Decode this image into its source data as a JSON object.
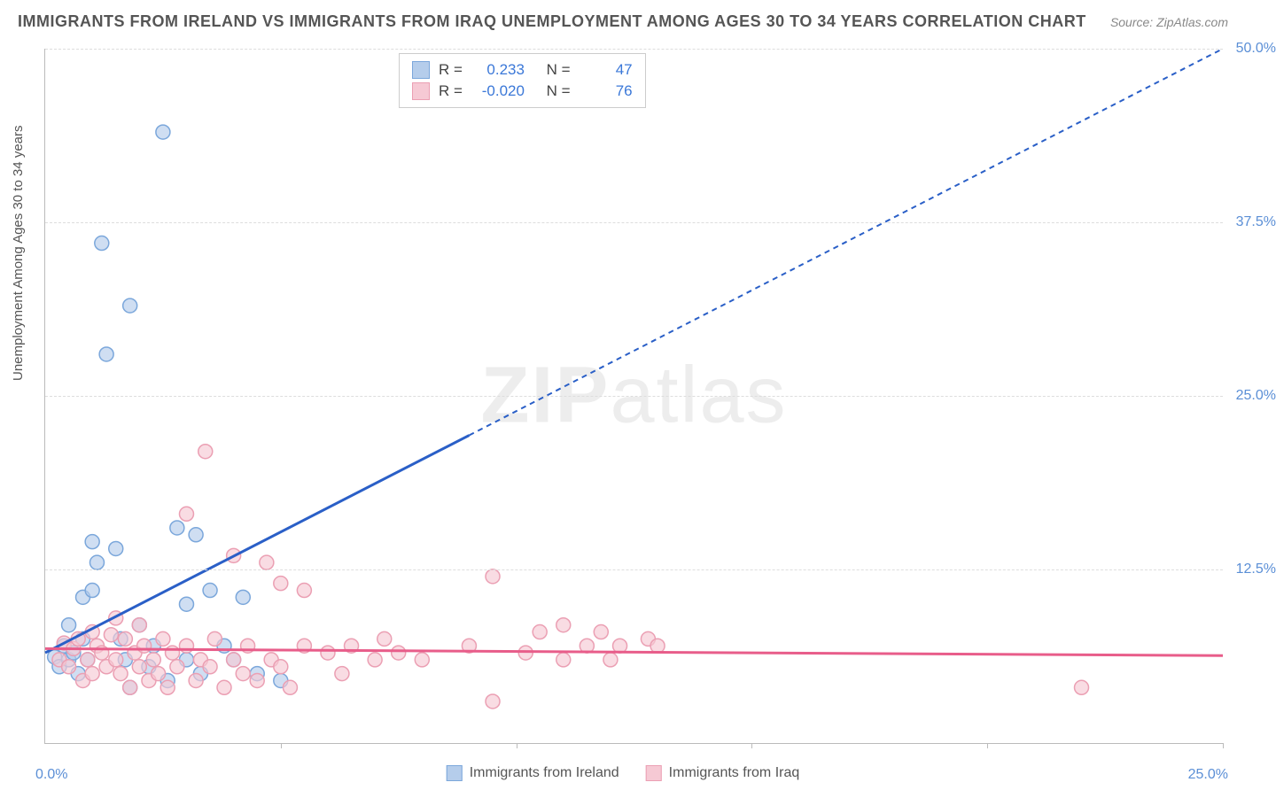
{
  "title": "IMMIGRANTS FROM IRELAND VS IMMIGRANTS FROM IRAQ UNEMPLOYMENT AMONG AGES 30 TO 34 YEARS CORRELATION CHART",
  "source": "Source: ZipAtlas.com",
  "y_axis_label": "Unemployment Among Ages 30 to 34 years",
  "watermark_main": "ZIP",
  "watermark_sub": "atlas",
  "chart": {
    "type": "scatter",
    "xlim": [
      0,
      25
    ],
    "ylim": [
      0,
      50
    ],
    "y_ticks": [
      12.5,
      25.0,
      37.5,
      50.0
    ],
    "y_tick_labels": [
      "12.5%",
      "25.0%",
      "37.5%",
      "50.0%"
    ],
    "x_ticks": [
      5,
      10,
      15,
      20,
      25
    ],
    "x_origin_label": "0.0%",
    "x_max_label": "25.0%",
    "background_color": "#ffffff",
    "grid_color": "#dddddd",
    "axis_color": "#bbbbbb",
    "marker_radius": 8,
    "marker_stroke_width": 1.5,
    "trend_line_width": 3,
    "trend_dash": "6,5"
  },
  "series": [
    {
      "name": "Immigrants from Ireland",
      "fill_color": "#b5cdeb",
      "stroke_color": "#7ba7db",
      "line_color": "#2a5fc7",
      "R": "0.233",
      "N": "47",
      "trend": {
        "x1": 0,
        "y1": 6.5,
        "x2": 25,
        "y2": 50,
        "solid_until_x": 9
      },
      "points": [
        [
          0.2,
          6.2
        ],
        [
          0.3,
          5.5
        ],
        [
          0.4,
          7.0
        ],
        [
          0.5,
          6.0
        ],
        [
          0.5,
          8.5
        ],
        [
          0.6,
          6.5
        ],
        [
          0.7,
          5.0
        ],
        [
          0.8,
          7.5
        ],
        [
          0.8,
          10.5
        ],
        [
          0.9,
          6.0
        ],
        [
          1.0,
          11.0
        ],
        [
          1.0,
          14.5
        ],
        [
          1.1,
          13.0
        ],
        [
          1.2,
          36.0
        ],
        [
          1.3,
          28.0
        ],
        [
          1.5,
          14.0
        ],
        [
          1.6,
          7.5
        ],
        [
          1.7,
          6.0
        ],
        [
          1.8,
          4.0
        ],
        [
          1.8,
          31.5
        ],
        [
          2.0,
          8.5
        ],
        [
          2.2,
          5.5
        ],
        [
          2.3,
          7.0
        ],
        [
          2.5,
          44.0
        ],
        [
          2.6,
          4.5
        ],
        [
          2.8,
          15.5
        ],
        [
          3.0,
          6.0
        ],
        [
          3.0,
          10.0
        ],
        [
          3.2,
          15.0
        ],
        [
          3.3,
          5.0
        ],
        [
          3.5,
          11.0
        ],
        [
          3.8,
          7.0
        ],
        [
          4.0,
          6.0
        ],
        [
          4.2,
          10.5
        ],
        [
          4.5,
          5.0
        ],
        [
          5.0,
          4.5
        ]
      ]
    },
    {
      "name": "Immigrants from Iraq",
      "fill_color": "#f6c9d4",
      "stroke_color": "#eb9fb3",
      "line_color": "#e85d8a",
      "R": "-0.020",
      "N": "76",
      "trend": {
        "x1": 0,
        "y1": 6.8,
        "x2": 25,
        "y2": 6.3,
        "solid_until_x": 25
      },
      "points": [
        [
          0.3,
          6.0
        ],
        [
          0.4,
          7.2
        ],
        [
          0.5,
          5.5
        ],
        [
          0.6,
          6.8
        ],
        [
          0.7,
          7.5
        ],
        [
          0.8,
          4.5
        ],
        [
          0.9,
          6.0
        ],
        [
          1.0,
          5.0
        ],
        [
          1.0,
          8.0
        ],
        [
          1.1,
          7.0
        ],
        [
          1.2,
          6.5
        ],
        [
          1.3,
          5.5
        ],
        [
          1.4,
          7.8
        ],
        [
          1.5,
          6.0
        ],
        [
          1.5,
          9.0
        ],
        [
          1.6,
          5.0
        ],
        [
          1.7,
          7.5
        ],
        [
          1.8,
          4.0
        ],
        [
          1.9,
          6.5
        ],
        [
          2.0,
          5.5
        ],
        [
          2.0,
          8.5
        ],
        [
          2.1,
          7.0
        ],
        [
          2.2,
          4.5
        ],
        [
          2.3,
          6.0
        ],
        [
          2.4,
          5.0
        ],
        [
          2.5,
          7.5
        ],
        [
          2.6,
          4.0
        ],
        [
          2.7,
          6.5
        ],
        [
          2.8,
          5.5
        ],
        [
          3.0,
          7.0
        ],
        [
          3.0,
          16.5
        ],
        [
          3.2,
          4.5
        ],
        [
          3.3,
          6.0
        ],
        [
          3.4,
          21.0
        ],
        [
          3.5,
          5.5
        ],
        [
          3.6,
          7.5
        ],
        [
          3.8,
          4.0
        ],
        [
          4.0,
          13.5
        ],
        [
          4.0,
          6.0
        ],
        [
          4.2,
          5.0
        ],
        [
          4.3,
          7.0
        ],
        [
          4.5,
          4.5
        ],
        [
          4.7,
          13.0
        ],
        [
          4.8,
          6.0
        ],
        [
          5.0,
          5.5
        ],
        [
          5.0,
          11.5
        ],
        [
          5.2,
          4.0
        ],
        [
          5.5,
          7.0
        ],
        [
          5.5,
          11.0
        ],
        [
          6.0,
          6.5
        ],
        [
          6.3,
          5.0
        ],
        [
          6.5,
          7.0
        ],
        [
          7.0,
          6.0
        ],
        [
          7.2,
          7.5
        ],
        [
          7.5,
          6.5
        ],
        [
          8.0,
          6.0
        ],
        [
          9.0,
          7.0
        ],
        [
          9.5,
          3.0
        ],
        [
          9.5,
          12.0
        ],
        [
          10.2,
          6.5
        ],
        [
          10.5,
          8.0
        ],
        [
          11.0,
          6.0
        ],
        [
          11.0,
          8.5
        ],
        [
          11.5,
          7.0
        ],
        [
          11.8,
          8.0
        ],
        [
          12.0,
          6.0
        ],
        [
          12.2,
          7.0
        ],
        [
          12.8,
          7.5
        ],
        [
          13.0,
          7.0
        ],
        [
          22.0,
          4.0
        ]
      ]
    }
  ],
  "stats_box": {
    "r_label": "R =",
    "n_label": "N ="
  },
  "bottom_legend": {
    "label_a": "Immigrants from Ireland",
    "label_b": "Immigrants from Iraq"
  }
}
